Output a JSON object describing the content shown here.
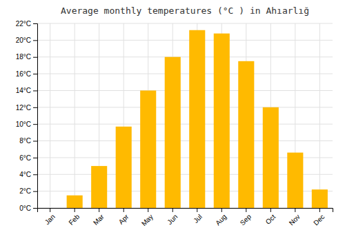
{
  "chart_data": {
    "type": "bar",
    "title": "Average monthly temperatures (°C ) in Ahıarlığ",
    "categories": [
      "Jan",
      "Feb",
      "Mar",
      "Apr",
      "May",
      "Jun",
      "Jul",
      "Aug",
      "Sep",
      "Oct",
      "Nov",
      "Dec"
    ],
    "values": [
      0,
      1.5,
      5.0,
      9.7,
      14.0,
      18.0,
      21.2,
      20.8,
      17.5,
      12.0,
      6.6,
      2.2
    ],
    "color": "#FFBA00",
    "ylim": [
      0,
      22
    ],
    "yticks": [
      {
        "value": 0,
        "label": "0°C"
      },
      {
        "value": 2,
        "label": "2°C"
      },
      {
        "value": 4,
        "label": "4°C"
      },
      {
        "value": 6,
        "label": "6°C"
      },
      {
        "value": 8,
        "label": "8°C"
      },
      {
        "value": 10,
        "label": "10°C"
      },
      {
        "value": 12,
        "label": "12°C"
      },
      {
        "value": 14,
        "label": "14°C"
      },
      {
        "value": 16,
        "label": "16°C"
      },
      {
        "value": 18,
        "label": "18°C"
      },
      {
        "value": 20,
        "label": "20°C"
      },
      {
        "value": 22,
        "label": "22°C"
      }
    ],
    "grid": true
  }
}
